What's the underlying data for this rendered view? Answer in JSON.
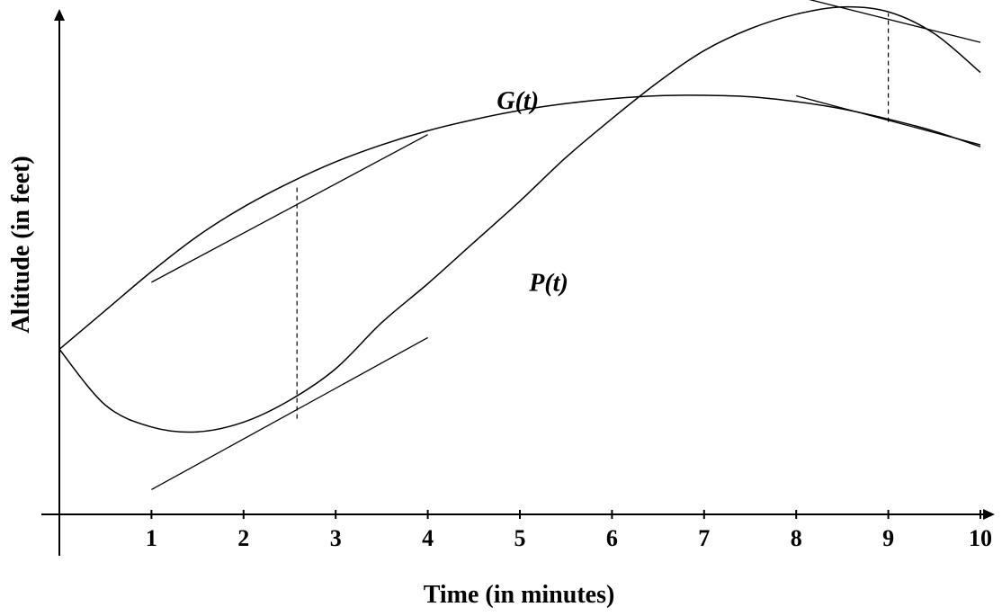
{
  "chart_data": {
    "type": "line",
    "title": "",
    "xlabel": "Time (in minutes)",
    "ylabel": "Altitude (in feet)",
    "xlim": [
      0,
      10
    ],
    "xticks": [
      "1",
      "2",
      "3",
      "4",
      "5",
      "6",
      "7",
      "8",
      "9",
      "10"
    ],
    "yticks": [],
    "grid": false,
    "series": [
      {
        "name": "G(t)",
        "x": [
          0,
          0.5,
          1,
          1.5,
          2,
          2.5,
          3,
          3.5,
          4,
          4.5,
          5,
          5.5,
          6,
          6.5,
          7,
          7.5,
          8,
          8.5,
          9,
          9.5,
          10
        ],
        "y": [
          0.34,
          0.42,
          0.5,
          0.573,
          0.633,
          0.683,
          0.726,
          0.761,
          0.79,
          0.813,
          0.832,
          0.846,
          0.856,
          0.862,
          0.863,
          0.86,
          0.85,
          0.835,
          0.814,
          0.789,
          0.757
        ]
      },
      {
        "name": "P(t)",
        "x": [
          0,
          0.5,
          1,
          1.5,
          2,
          2.5,
          3,
          3.5,
          4,
          4.5,
          5,
          5.5,
          6,
          6.5,
          7,
          7.5,
          8,
          8.5,
          9,
          9.5,
          10
        ],
        "y": [
          0.34,
          0.225,
          0.18,
          0.17,
          0.19,
          0.235,
          0.3,
          0.395,
          0.475,
          0.56,
          0.645,
          0.735,
          0.815,
          0.89,
          0.955,
          1.0,
          1.03,
          1.045,
          1.035,
          0.99,
          0.91
        ]
      }
    ],
    "tangents": [
      {
        "of": "G(t)",
        "x": [
          1,
          4
        ],
        "y": [
          0.478,
          0.782
        ]
      },
      {
        "of": "P(t)",
        "x": [
          1,
          4
        ],
        "y": [
          0.051,
          0.364
        ]
      },
      {
        "of": "P(t)",
        "x": [
          8,
          10
        ],
        "y": [
          1.067,
          0.972
        ]
      },
      {
        "of": "G(t)",
        "x": [
          8,
          10
        ],
        "y": [
          0.862,
          0.761
        ]
      }
    ],
    "dashed_verticals": [
      {
        "x": 2.58,
        "y_from": 0.197,
        "y_to": 0.675
      },
      {
        "x": 9.0,
        "y_from": 0.808,
        "y_to": 1.032
      }
    ],
    "annotations": [
      {
        "text": "G(t)",
        "x": 4.75,
        "y": 0.835
      },
      {
        "text": "P(t)",
        "x": 5.1,
        "y": 0.46
      }
    ]
  }
}
